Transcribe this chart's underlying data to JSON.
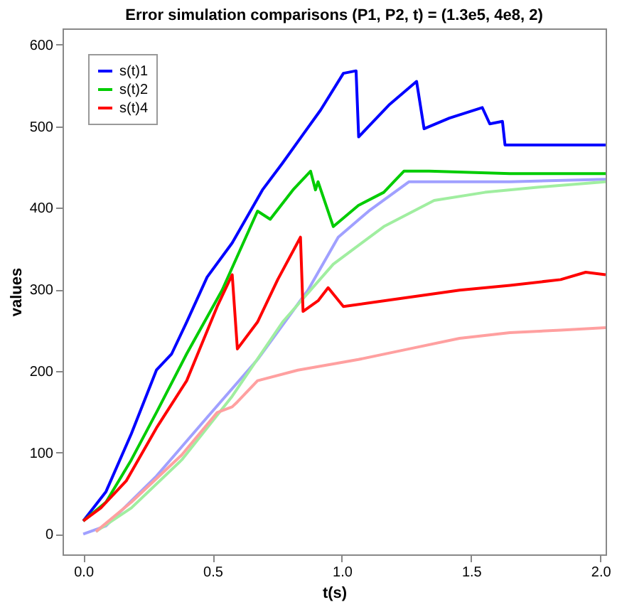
{
  "chart_data": {
    "type": "line",
    "title": "Error simulation comparisons (P1, P2, t) = (1.3e5, 4e8, 2)",
    "xlabel": "t(s)",
    "ylabel": "values",
    "xlim": [
      -0.08,
      2.02
    ],
    "xticks": [
      {
        "value": 0,
        "label": "0.0"
      },
      {
        "value": 0.5,
        "label": "0.5"
      },
      {
        "value": 1,
        "label": "1.0"
      },
      {
        "value": 1.5,
        "label": "1.5"
      },
      {
        "value": 2,
        "label": "2.0"
      }
    ],
    "ylim": [
      -25,
      620
    ],
    "yticks": [
      0,
      100,
      200,
      300,
      400,
      500,
      600
    ],
    "grid": false,
    "legend": "top left",
    "line_style": "solid",
    "marker": "none",
    "series": [
      {
        "color": "#a0a0ff",
        "x": [
          0,
          0.088,
          0.283,
          0.479,
          0.674,
          0.869,
          0.986,
          1.104,
          1.26,
          1.377,
          1.65,
          2.02
        ],
        "values": [
          0,
          10,
          71,
          143,
          214,
          299,
          364,
          396,
          432,
          432,
          432,
          435
        ]
      },
      {
        "color": "#a0eea0",
        "x": [
          0.049,
          0.186,
          0.381,
          0.576,
          0.771,
          0.967,
          1.162,
          1.357,
          1.553,
          1.748,
          2.02
        ],
        "values": [
          3,
          32,
          91,
          169,
          260,
          331,
          377,
          409,
          419,
          425,
          432
        ]
      },
      {
        "color": "#ffa0a0",
        "x": [
          0.049,
          0.186,
          0.381,
          0.518,
          0.576,
          0.596,
          0.674,
          0.83,
          1.064,
          1.26,
          1.455,
          1.65,
          1.846,
          2.02
        ],
        "values": [
          3,
          39,
          97,
          149,
          156,
          162,
          188,
          201,
          214,
          227,
          240,
          247,
          250,
          253
        ]
      },
      {
        "name": "s(t)1",
        "color": "#0000ff",
        "x": [
          0,
          0.088,
          0.186,
          0.283,
          0.342,
          0.4,
          0.479,
          0.576,
          0.693,
          0.771,
          0.85,
          0.918,
          1.006,
          1.055,
          1.065,
          1.104,
          1.182,
          1.289,
          1.318,
          1.416,
          1.543,
          1.572,
          1.621,
          1.631,
          1.846,
          2.02
        ],
        "values": [
          16,
          52,
          123,
          201,
          221,
          260,
          315,
          357,
          422,
          455,
          490,
          520,
          565,
          568,
          487,
          500,
          526,
          555,
          497,
          510,
          523,
          503,
          506,
          477,
          477,
          477
        ]
      },
      {
        "name": "s(t)2",
        "color": "#00cc00",
        "x": [
          0,
          0.088,
          0.186,
          0.283,
          0.4,
          0.537,
          0.674,
          0.723,
          0.811,
          0.879,
          0.898,
          0.908,
          0.967,
          1.064,
          1.162,
          1.24,
          1.338,
          1.65,
          2.02
        ],
        "values": [
          16,
          39,
          91,
          149,
          221,
          299,
          396,
          386,
          422,
          445,
          422,
          432,
          377,
          403,
          419,
          445,
          445,
          442,
          442
        ]
      },
      {
        "name": "s(t)4",
        "color": "#ff0000",
        "x": [
          0,
          0.068,
          0.166,
          0.283,
          0.4,
          0.518,
          0.576,
          0.596,
          0.674,
          0.752,
          0.84,
          0.85,
          0.908,
          0.947,
          1.006,
          1.162,
          1.455,
          1.65,
          1.846,
          1.943,
          2.02
        ],
        "values": [
          16,
          32,
          65,
          130,
          188,
          279,
          318,
          227,
          260,
          312,
          364,
          273,
          286,
          302,
          279,
          286,
          299,
          305,
          312,
          321,
          318
        ]
      }
    ]
  }
}
